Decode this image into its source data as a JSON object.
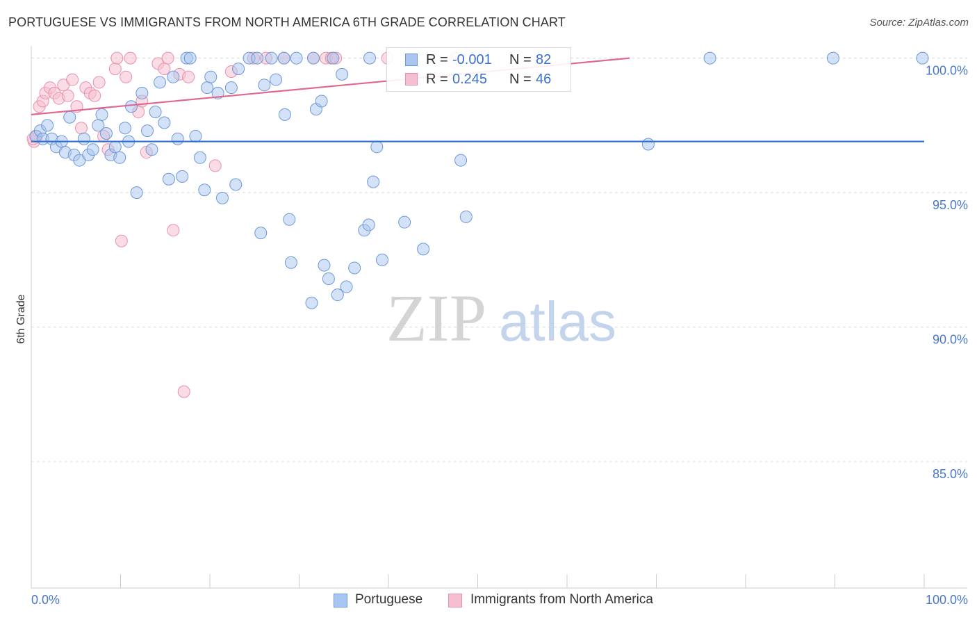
{
  "title": "PORTUGUESE VS IMMIGRANTS FROM NORTH AMERICA 6TH GRADE CORRELATION CHART",
  "source": "Source: ZipAtlas.com",
  "watermark": {
    "zip": "ZIP",
    "atlas": "atlas"
  },
  "colors": {
    "blue_fill": "#a9c6f0",
    "blue_stroke": "#6c98d8",
    "blue_line": "#2e6fd3",
    "pink_fill": "#f6bfd0",
    "pink_stroke": "#e890ad",
    "pink_line": "#e06890",
    "grid": "#d9d9d9",
    "axis_text": "#4a77c9"
  },
  "legend": {
    "rows": [
      {
        "r_label": "R =",
        "r_value": "-0.001",
        "n_label": "N =",
        "n_value": "82"
      },
      {
        "r_label": "R =",
        "r_value": "0.245",
        "n_label": "N =",
        "n_value": "46"
      }
    ]
  },
  "bottom_legend": {
    "series1": "Portuguese",
    "series2": "Immigrants from North America"
  },
  "chart_data": {
    "type": "scatter",
    "title": "PORTUGUESE VS IMMIGRANTS FROM NORTH AMERICA 6TH GRADE CORRELATION CHART",
    "xlabel": "",
    "ylabel": "6th Grade",
    "xlim": [
      0,
      100
    ],
    "ylim": [
      80.3,
      100.3
    ],
    "x_tick_labels": [
      "0.0%",
      "100.0%"
    ],
    "y_ticks": [
      {
        "value": 100,
        "label": "100.0%"
      },
      {
        "value": 95,
        "label": "95.0%"
      },
      {
        "value": 90,
        "label": "90.0%"
      },
      {
        "value": 85,
        "label": "85.0%"
      }
    ],
    "series": [
      {
        "name": "Portuguese",
        "r": -0.001,
        "n": 82,
        "trend": {
          "x0": 0,
          "y0": 96.9,
          "x1": 100,
          "y1": 96.9
        },
        "points": [
          {
            "x": 0.5,
            "y": 97.1
          },
          {
            "x": 1.0,
            "y": 97.3
          },
          {
            "x": 1.3,
            "y": 97.0
          },
          {
            "x": 1.8,
            "y": 97.5
          },
          {
            "x": 2.3,
            "y": 97.0
          },
          {
            "x": 2.8,
            "y": 96.7
          },
          {
            "x": 3.4,
            "y": 96.9
          },
          {
            "x": 3.8,
            "y": 96.5
          },
          {
            "x": 4.3,
            "y": 97.8
          },
          {
            "x": 4.8,
            "y": 96.4
          },
          {
            "x": 5.4,
            "y": 96.2
          },
          {
            "x": 5.9,
            "y": 97.0
          },
          {
            "x": 6.4,
            "y": 96.4
          },
          {
            "x": 6.9,
            "y": 96.6
          },
          {
            "x": 7.5,
            "y": 97.5
          },
          {
            "x": 7.9,
            "y": 97.9
          },
          {
            "x": 8.4,
            "y": 97.2
          },
          {
            "x": 8.9,
            "y": 96.4
          },
          {
            "x": 9.4,
            "y": 96.7
          },
          {
            "x": 9.9,
            "y": 96.3
          },
          {
            "x": 10.5,
            "y": 97.4
          },
          {
            "x": 10.9,
            "y": 96.9
          },
          {
            "x": 11.2,
            "y": 98.2
          },
          {
            "x": 11.8,
            "y": 95.0
          },
          {
            "x": 12.4,
            "y": 98.7
          },
          {
            "x": 13.0,
            "y": 97.3
          },
          {
            "x": 13.5,
            "y": 96.6
          },
          {
            "x": 13.9,
            "y": 98.0
          },
          {
            "x": 14.4,
            "y": 99.1
          },
          {
            "x": 14.9,
            "y": 97.6
          },
          {
            "x": 15.4,
            "y": 95.5
          },
          {
            "x": 15.9,
            "y": 99.3
          },
          {
            "x": 16.4,
            "y": 97.0
          },
          {
            "x": 16.9,
            "y": 95.6
          },
          {
            "x": 17.4,
            "y": 100.0
          },
          {
            "x": 17.8,
            "y": 100.0
          },
          {
            "x": 18.4,
            "y": 97.1
          },
          {
            "x": 18.9,
            "y": 96.3
          },
          {
            "x": 19.4,
            "y": 95.1
          },
          {
            "x": 19.7,
            "y": 98.9
          },
          {
            "x": 20.1,
            "y": 99.3
          },
          {
            "x": 20.9,
            "y": 98.7
          },
          {
            "x": 21.4,
            "y": 94.8
          },
          {
            "x": 22.4,
            "y": 98.9
          },
          {
            "x": 22.9,
            "y": 95.3
          },
          {
            "x": 23.2,
            "y": 99.6
          },
          {
            "x": 24.4,
            "y": 100.0
          },
          {
            "x": 25.3,
            "y": 100.0
          },
          {
            "x": 25.7,
            "y": 93.5
          },
          {
            "x": 26.1,
            "y": 99.0
          },
          {
            "x": 26.9,
            "y": 100.0
          },
          {
            "x": 27.4,
            "y": 99.2
          },
          {
            "x": 28.4,
            "y": 97.9
          },
          {
            "x": 28.9,
            "y": 94.0
          },
          {
            "x": 29.1,
            "y": 92.4
          },
          {
            "x": 29.7,
            "y": 100.0
          },
          {
            "x": 31.6,
            "y": 100.0
          },
          {
            "x": 31.4,
            "y": 90.9
          },
          {
            "x": 31.9,
            "y": 98.1
          },
          {
            "x": 32.5,
            "y": 98.4
          },
          {
            "x": 32.8,
            "y": 92.3
          },
          {
            "x": 33.3,
            "y": 91.8
          },
          {
            "x": 33.8,
            "y": 100.0
          },
          {
            "x": 34.3,
            "y": 91.2
          },
          {
            "x": 34.8,
            "y": 99.4
          },
          {
            "x": 35.3,
            "y": 91.5
          },
          {
            "x": 36.2,
            "y": 92.2
          },
          {
            "x": 37.3,
            "y": 93.6
          },
          {
            "x": 37.8,
            "y": 93.8
          },
          {
            "x": 37.9,
            "y": 100.0
          },
          {
            "x": 38.3,
            "y": 95.4
          },
          {
            "x": 38.7,
            "y": 96.7
          },
          {
            "x": 39.3,
            "y": 92.5
          },
          {
            "x": 41.8,
            "y": 93.9
          },
          {
            "x": 43.9,
            "y": 92.9
          },
          {
            "x": 48.1,
            "y": 96.2
          },
          {
            "x": 48.7,
            "y": 94.1
          },
          {
            "x": 69.1,
            "y": 96.8
          },
          {
            "x": 76.0,
            "y": 100.0
          },
          {
            "x": 89.8,
            "y": 100.0
          },
          {
            "x": 99.8,
            "y": 100.0
          },
          {
            "x": 28.3,
            "y": 100.0
          }
        ]
      },
      {
        "name": "Immigrants from North America",
        "r": 0.245,
        "n": 46,
        "trend": {
          "x0": 0,
          "y0": 97.9,
          "x1": 67,
          "y1": 100.0
        },
        "points": [
          {
            "x": 0.3,
            "y": 96.9
          },
          {
            "x": 0.6,
            "y": 97.1
          },
          {
            "x": 0.9,
            "y": 98.2
          },
          {
            "x": 1.3,
            "y": 98.4
          },
          {
            "x": 1.6,
            "y": 98.7
          },
          {
            "x": 2.1,
            "y": 98.9
          },
          {
            "x": 2.6,
            "y": 98.7
          },
          {
            "x": 3.1,
            "y": 98.5
          },
          {
            "x": 3.6,
            "y": 99.0
          },
          {
            "x": 4.1,
            "y": 98.6
          },
          {
            "x": 4.6,
            "y": 99.2
          },
          {
            "x": 5.1,
            "y": 98.2
          },
          {
            "x": 5.6,
            "y": 97.4
          },
          {
            "x": 6.1,
            "y": 98.9
          },
          {
            "x": 6.6,
            "y": 98.7
          },
          {
            "x": 7.1,
            "y": 98.6
          },
          {
            "x": 7.6,
            "y": 99.1
          },
          {
            "x": 8.1,
            "y": 97.1
          },
          {
            "x": 8.6,
            "y": 96.6
          },
          {
            "x": 9.4,
            "y": 99.6
          },
          {
            "x": 9.6,
            "y": 100.0
          },
          {
            "x": 10.1,
            "y": 93.2
          },
          {
            "x": 10.6,
            "y": 99.3
          },
          {
            "x": 11.1,
            "y": 100.0
          },
          {
            "x": 12.0,
            "y": 98.0
          },
          {
            "x": 12.4,
            "y": 98.4
          },
          {
            "x": 12.9,
            "y": 96.5
          },
          {
            "x": 14.2,
            "y": 99.8
          },
          {
            "x": 14.9,
            "y": 99.6
          },
          {
            "x": 15.3,
            "y": 100.0
          },
          {
            "x": 15.9,
            "y": 93.6
          },
          {
            "x": 16.6,
            "y": 99.4
          },
          {
            "x": 17.1,
            "y": 87.6
          },
          {
            "x": 17.6,
            "y": 99.3
          },
          {
            "x": 20.6,
            "y": 96.0
          },
          {
            "x": 22.4,
            "y": 99.5
          },
          {
            "x": 26.3,
            "y": 100.0
          },
          {
            "x": 28.3,
            "y": 100.0
          },
          {
            "x": 31.6,
            "y": 100.0
          },
          {
            "x": 33.0,
            "y": 100.0
          },
          {
            "x": 33.6,
            "y": 100.0
          },
          {
            "x": 34.1,
            "y": 100.0
          },
          {
            "x": 39.9,
            "y": 100.0
          },
          {
            "x": 47.5,
            "y": 100.0
          },
          {
            "x": 24.9,
            "y": 100.0
          },
          {
            "x": 0.2,
            "y": 97.0
          }
        ]
      }
    ]
  }
}
